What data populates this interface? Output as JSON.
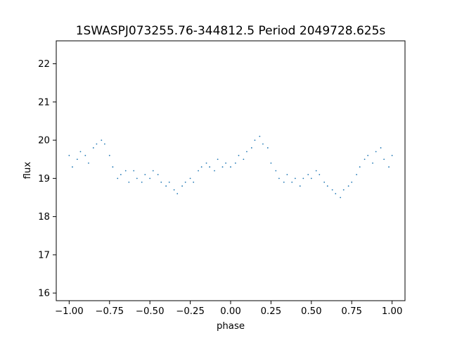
{
  "chart_data": {
    "type": "scatter",
    "title": "1SWASPJ073255.76-344812.5 Period 2049728.625s",
    "xlabel": "phase",
    "ylabel": "flux",
    "xlim": [
      -1.08,
      1.08
    ],
    "ylim": [
      15.8,
      22.6
    ],
    "xticks": [
      -1.0,
      -0.75,
      -0.5,
      -0.25,
      0.0,
      0.25,
      0.5,
      0.75,
      1.0
    ],
    "xtick_labels": [
      "−1.00",
      "−0.75",
      "−0.50",
      "−0.25",
      "0.00",
      "0.25",
      "0.50",
      "0.75",
      "1.00"
    ],
    "yticks": [
      16,
      17,
      18,
      19,
      20,
      21,
      22
    ],
    "ytick_labels": [
      "16",
      "17",
      "18",
      "19",
      "20",
      "21",
      "22"
    ],
    "grid": false,
    "marker_color": "#1f77b4",
    "series": [
      {
        "x": [
          -1.0,
          -0.98,
          -0.95,
          -0.93,
          -0.9,
          -0.88,
          -0.85,
          -0.83,
          -0.8,
          -0.78,
          -0.75,
          -0.73,
          -0.7,
          -0.68,
          -0.65,
          -0.63,
          -0.6,
          -0.58,
          -0.55,
          -0.53,
          -0.5,
          -0.48,
          -0.45,
          -0.43,
          -0.4,
          -0.38,
          -0.35,
          -0.33,
          -0.3,
          -0.28,
          -0.25,
          -0.23,
          -0.2,
          -0.18,
          -0.15,
          -0.13,
          -0.1,
          -0.08,
          -0.05,
          -0.03,
          0.0,
          0.03,
          0.05,
          0.08,
          0.1,
          0.13,
          0.15,
          0.18,
          0.2,
          0.23,
          0.25,
          0.28,
          0.3,
          0.33,
          0.35,
          0.38,
          0.4,
          0.43,
          0.45,
          0.48,
          0.5,
          0.53,
          0.55,
          0.58,
          0.6,
          0.63,
          0.65,
          0.68,
          0.7,
          0.73,
          0.75,
          0.78,
          0.8,
          0.83,
          0.85,
          0.88,
          0.9,
          0.93,
          0.95,
          0.98,
          1.0
        ],
        "y": [
          19.6,
          19.3,
          19.5,
          19.7,
          19.6,
          19.4,
          19.8,
          19.9,
          20.0,
          19.9,
          19.6,
          19.3,
          19.0,
          19.1,
          19.2,
          18.9,
          19.2,
          19.0,
          18.9,
          19.1,
          19.0,
          19.2,
          19.1,
          18.9,
          18.8,
          18.9,
          18.7,
          18.6,
          18.8,
          18.9,
          19.0,
          18.9,
          19.2,
          19.3,
          19.4,
          19.3,
          19.2,
          19.5,
          19.3,
          19.4,
          19.3,
          19.4,
          19.6,
          19.5,
          19.7,
          19.8,
          20.0,
          20.1,
          19.9,
          19.8,
          19.4,
          19.2,
          19.0,
          18.9,
          19.1,
          18.9,
          19.0,
          18.8,
          19.0,
          19.1,
          19.0,
          19.2,
          19.1,
          18.9,
          18.8,
          18.7,
          18.6,
          18.5,
          18.7,
          18.8,
          18.9,
          19.1,
          19.3,
          19.5,
          19.6,
          19.4,
          19.7,
          19.8,
          19.5,
          19.3,
          19.6
        ]
      }
    ]
  }
}
